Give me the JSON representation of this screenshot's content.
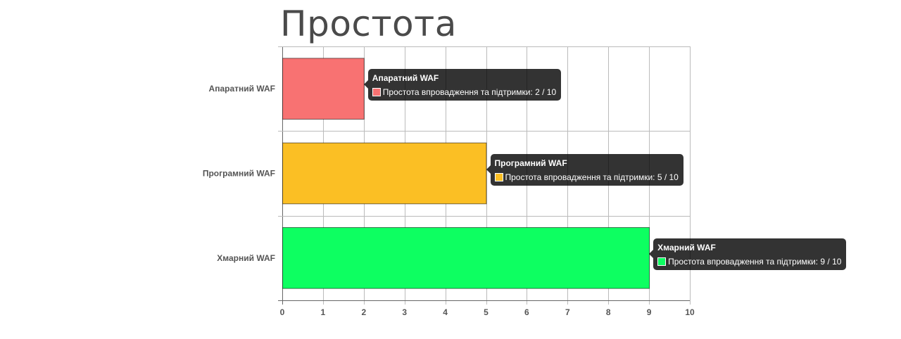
{
  "chart_data": {
    "type": "bar",
    "orientation": "horizontal",
    "title": "Простота",
    "categories": [
      "Апаратний WAF",
      "Програмний WAF",
      "Хмарний WAF"
    ],
    "series": [
      {
        "name": "Простота впровадження та підтримки",
        "values": [
          2,
          5,
          9
        ],
        "colors": [
          "#f87272",
          "#fbbf24",
          "#0dff61"
        ]
      }
    ],
    "xlim": [
      0,
      10
    ],
    "xticks": [
      "0",
      "1",
      "2",
      "3",
      "4",
      "5",
      "6",
      "7",
      "8",
      "9",
      "10"
    ],
    "grid": true,
    "tooltips": [
      {
        "title": "Апаратний WAF",
        "text": "Простота впровадження та підтримки: 2 / 10"
      },
      {
        "title": "Програмний WAF",
        "text": "Простота впровадження та підтримки: 5 / 10"
      },
      {
        "title": "Хмарний WAF",
        "text": "Простота впровадження та підтримки: 9 / 10"
      }
    ]
  }
}
